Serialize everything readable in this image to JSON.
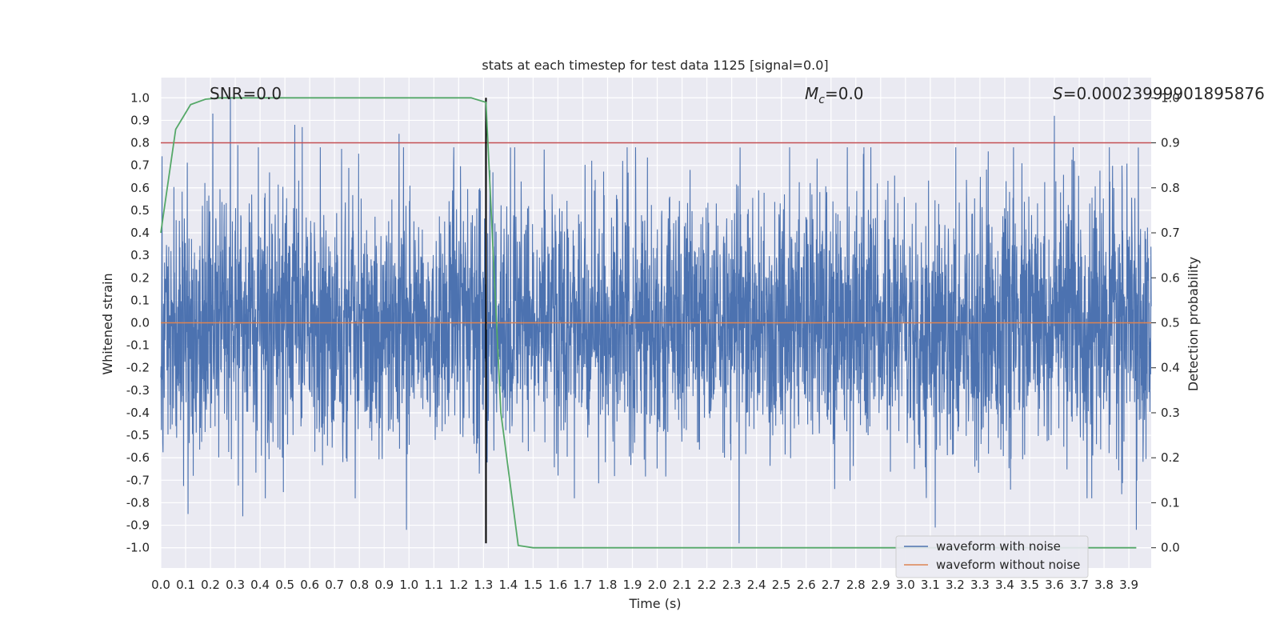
{
  "chart_data": {
    "type": "line",
    "title": "stats at each timestep for test data 1125 [signal=0.0]",
    "xlabel": "Time (s)",
    "ylabel": "Whitened strain",
    "y2label": "Detection probability",
    "xlim": [
      0.0,
      3.99
    ],
    "ylim": [
      -1.09,
      1.09
    ],
    "y2lim": [
      -0.045,
      1.045
    ],
    "xticks": [
      "0.0",
      "0.1",
      "0.2",
      "0.3",
      "0.4",
      "0.5",
      "0.6",
      "0.7",
      "0.8",
      "0.9",
      "1.0",
      "1.1",
      "1.2",
      "1.3",
      "1.4",
      "1.5",
      "1.6",
      "1.7",
      "1.8",
      "1.9",
      "2.0",
      "2.1",
      "2.2",
      "2.3",
      "2.4",
      "2.5",
      "2.6",
      "2.7",
      "2.8",
      "2.9",
      "3.0",
      "3.1",
      "3.2",
      "3.3",
      "3.4",
      "3.5",
      "3.6",
      "3.7",
      "3.8",
      "3.9"
    ],
    "yticks": [
      "1.0",
      "0.9",
      "0.8",
      "0.7",
      "0.6",
      "0.5",
      "0.4",
      "0.3",
      "0.2",
      "0.1",
      "0.0",
      "-0.1",
      "-0.2",
      "-0.3",
      "-0.4",
      "-0.5",
      "-0.6",
      "-0.7",
      "-0.8",
      "-0.9",
      "-1.0"
    ],
    "y2ticks": [
      "1.0",
      "0.9",
      "0.8",
      "0.7",
      "0.6",
      "0.5",
      "0.4",
      "0.3",
      "0.2",
      "0.1",
      "0.0"
    ],
    "annotations": {
      "snr": "SNR=0.0",
      "mc_symbol": "M",
      "mc_sub": "c",
      "mc_value": "=0.0",
      "s_symbol": "S",
      "s_value": "=0.00023999901895876"
    },
    "series": [
      {
        "name": "waveform with noise",
        "axis": "left",
        "color": "#4c72b0",
        "kind": "noise",
        "n_samples": 4000,
        "amplitude_rms": 0.28,
        "peaks": [
          {
            "t": 0.21,
            "v": 0.93
          },
          {
            "t": 0.28,
            "v": 1.0
          },
          {
            "t": 0.31,
            "v": 0.79
          },
          {
            "t": 0.54,
            "v": 0.88
          },
          {
            "t": 0.57,
            "v": 0.87
          },
          {
            "t": 0.96,
            "v": 0.84
          },
          {
            "t": 3.6,
            "v": 0.92
          },
          {
            "t": 0.11,
            "v": -0.85
          },
          {
            "t": 0.33,
            "v": -0.86
          },
          {
            "t": 0.99,
            "v": -0.92
          },
          {
            "t": 2.33,
            "v": -0.98
          },
          {
            "t": 3.12,
            "v": -0.91
          },
          {
            "t": 3.93,
            "v": -0.92
          }
        ]
      },
      {
        "name": "waveform without noise",
        "axis": "left",
        "color": "#dd8452",
        "kind": "constant",
        "value": 0.0
      },
      {
        "name": "detection probability",
        "axis": "right",
        "color": "#55a868",
        "kind": "line",
        "x": [
          0.0,
          0.06,
          0.12,
          0.18,
          0.24,
          1.25,
          1.31,
          1.37,
          1.44,
          1.5,
          3.93
        ],
        "y": [
          0.7,
          0.93,
          0.985,
          0.997,
          1.0,
          1.0,
          0.99,
          0.3,
          0.005,
          0.0,
          0.0
        ]
      }
    ],
    "hlines": [
      {
        "axis": "right",
        "y": 0.9,
        "color": "#c44e52"
      }
    ],
    "vlines": [
      {
        "x": 1.31,
        "y0": -0.98,
        "y1": 1.0,
        "color": "#000000"
      }
    ],
    "legend": {
      "position": "bottom-right",
      "entries": [
        {
          "label": "waveform with noise",
          "color": "#4c72b0"
        },
        {
          "label": "waveform without noise",
          "color": "#dd8452"
        }
      ]
    },
    "background": "#eaeaf2",
    "grid": true
  }
}
